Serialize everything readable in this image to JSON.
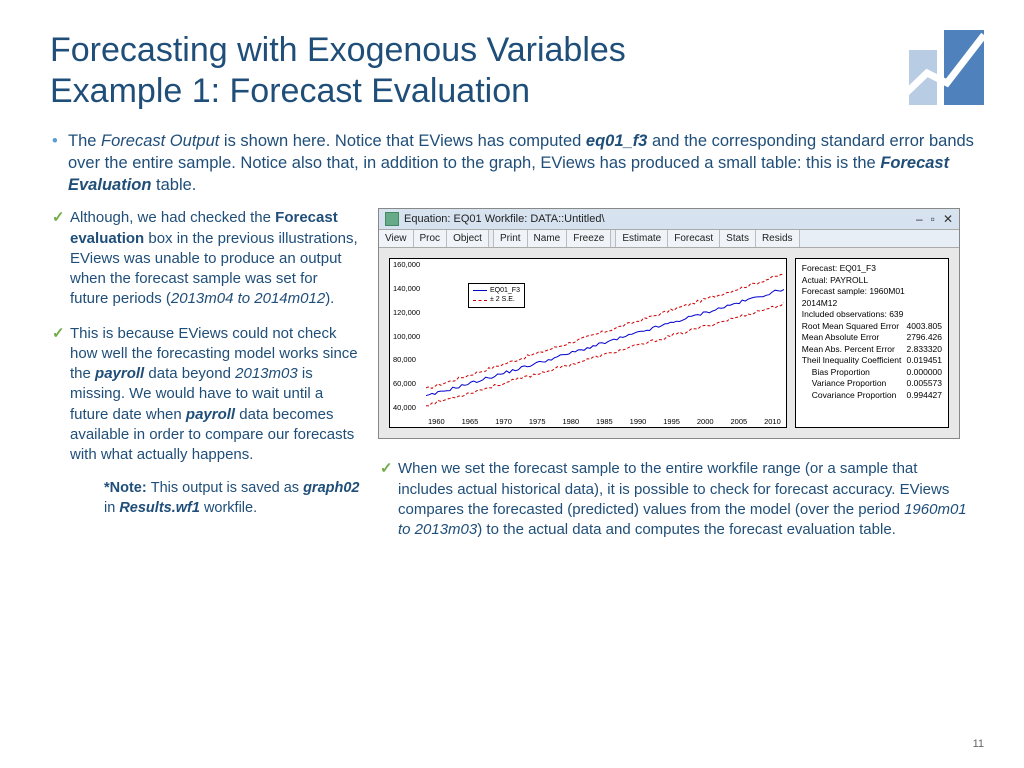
{
  "title_line1": "Forecasting with Exogenous Variables",
  "title_line2": "Example 1: Forecast Evaluation",
  "page_number": "11",
  "main_bullet": {
    "parts": [
      "The ",
      "Forecast Output",
      " is shown here. Notice that EViews has computed ",
      "eq01_f3",
      " and the corresponding standard error bands over the entire sample. Notice also that, in addition to the graph, EViews has produced a small table: this is the ",
      "Forecast Evaluation",
      " table."
    ]
  },
  "left_bullets": [
    {
      "parts": [
        "Although, we had checked the ",
        "Forecast evaluation ",
        "box in the previous illustrations, EViews was unable to produce an output when the forecast sample was set for future periods (",
        "2013m04 to 2014m012",
        ")."
      ]
    },
    {
      "parts": [
        "This is because EViews could not check how well the forecasting model works since the ",
        "payroll ",
        "data beyond ",
        "2013m03",
        " is missing. We would have to wait until a future date when ",
        "payroll ",
        "data becomes available in order to compare our forecasts with what actually happens."
      ]
    }
  ],
  "note": {
    "parts": [
      "*Note: ",
      "This output is saved as ",
      "graph02 ",
      "in ",
      "Results.wf1 ",
      "workfile."
    ]
  },
  "right_bullet": {
    "parts": [
      "When we set the forecast sample to the entire workfile range (or a sample that includes actual historical data), it is possible to check for forecast accuracy. EViews compares the forecasted (predicted) values from the model (over the period ",
      "1960m01 to 2013m03",
      ") to the actual data and computes the forecast evaluation table."
    ]
  },
  "eviews": {
    "title": "Equation: EQ01   Workfile: DATA::Untitled\\",
    "toolbar": [
      "View",
      "Proc",
      "Object",
      "Print",
      "Name",
      "Freeze",
      "Estimate",
      "Forecast",
      "Stats",
      "Resids"
    ],
    "toolbar_gaps": [
      3,
      6
    ],
    "chart": {
      "y_ticks": [
        "160,000",
        "140,000",
        "120,000",
        "100,000",
        "80,000",
        "60,000",
        "40,000"
      ],
      "x_ticks": [
        "1960",
        "1965",
        "1970",
        "1975",
        "1980",
        "1985",
        "1990",
        "1995",
        "2000",
        "2005",
        "2010"
      ],
      "legend": [
        {
          "label": "EQ01_F3",
          "color": "#0000cc",
          "dash": "solid"
        },
        {
          "label": "± 2 S.E.",
          "color": "#cc0000",
          "dash": "dashed"
        }
      ],
      "series": {
        "main_color": "#0000cc",
        "band_color": "#cc0000",
        "y_range": [
          40000,
          160000
        ],
        "main_start": 54000,
        "main_end": 140000,
        "upper_start": 60000,
        "upper_end": 152000,
        "lower_start": 47000,
        "lower_end": 128000,
        "noise_amp": 1200
      }
    },
    "eval": {
      "header": [
        "Forecast: EQ01_F3",
        "Actual: PAYROLL",
        "Forecast sample: 1960M01 2014M12",
        "Included observations: 639"
      ],
      "rows": [
        {
          "label": "Root Mean Squared Error",
          "val": "4003.805"
        },
        {
          "label": "Mean Absolute Error",
          "val": "2796.426"
        },
        {
          "label": "Mean Abs. Percent Error",
          "val": "2.833320"
        },
        {
          "label": "Theil Inequality Coefficient",
          "val": "0.019451"
        },
        {
          "label": "Bias Proportion",
          "val": "0.000000",
          "indent": true
        },
        {
          "label": "Variance Proportion",
          "val": "0.005573",
          "indent": true
        },
        {
          "label": "Covariance Proportion",
          "val": "0.994427",
          "indent": true
        }
      ]
    }
  }
}
